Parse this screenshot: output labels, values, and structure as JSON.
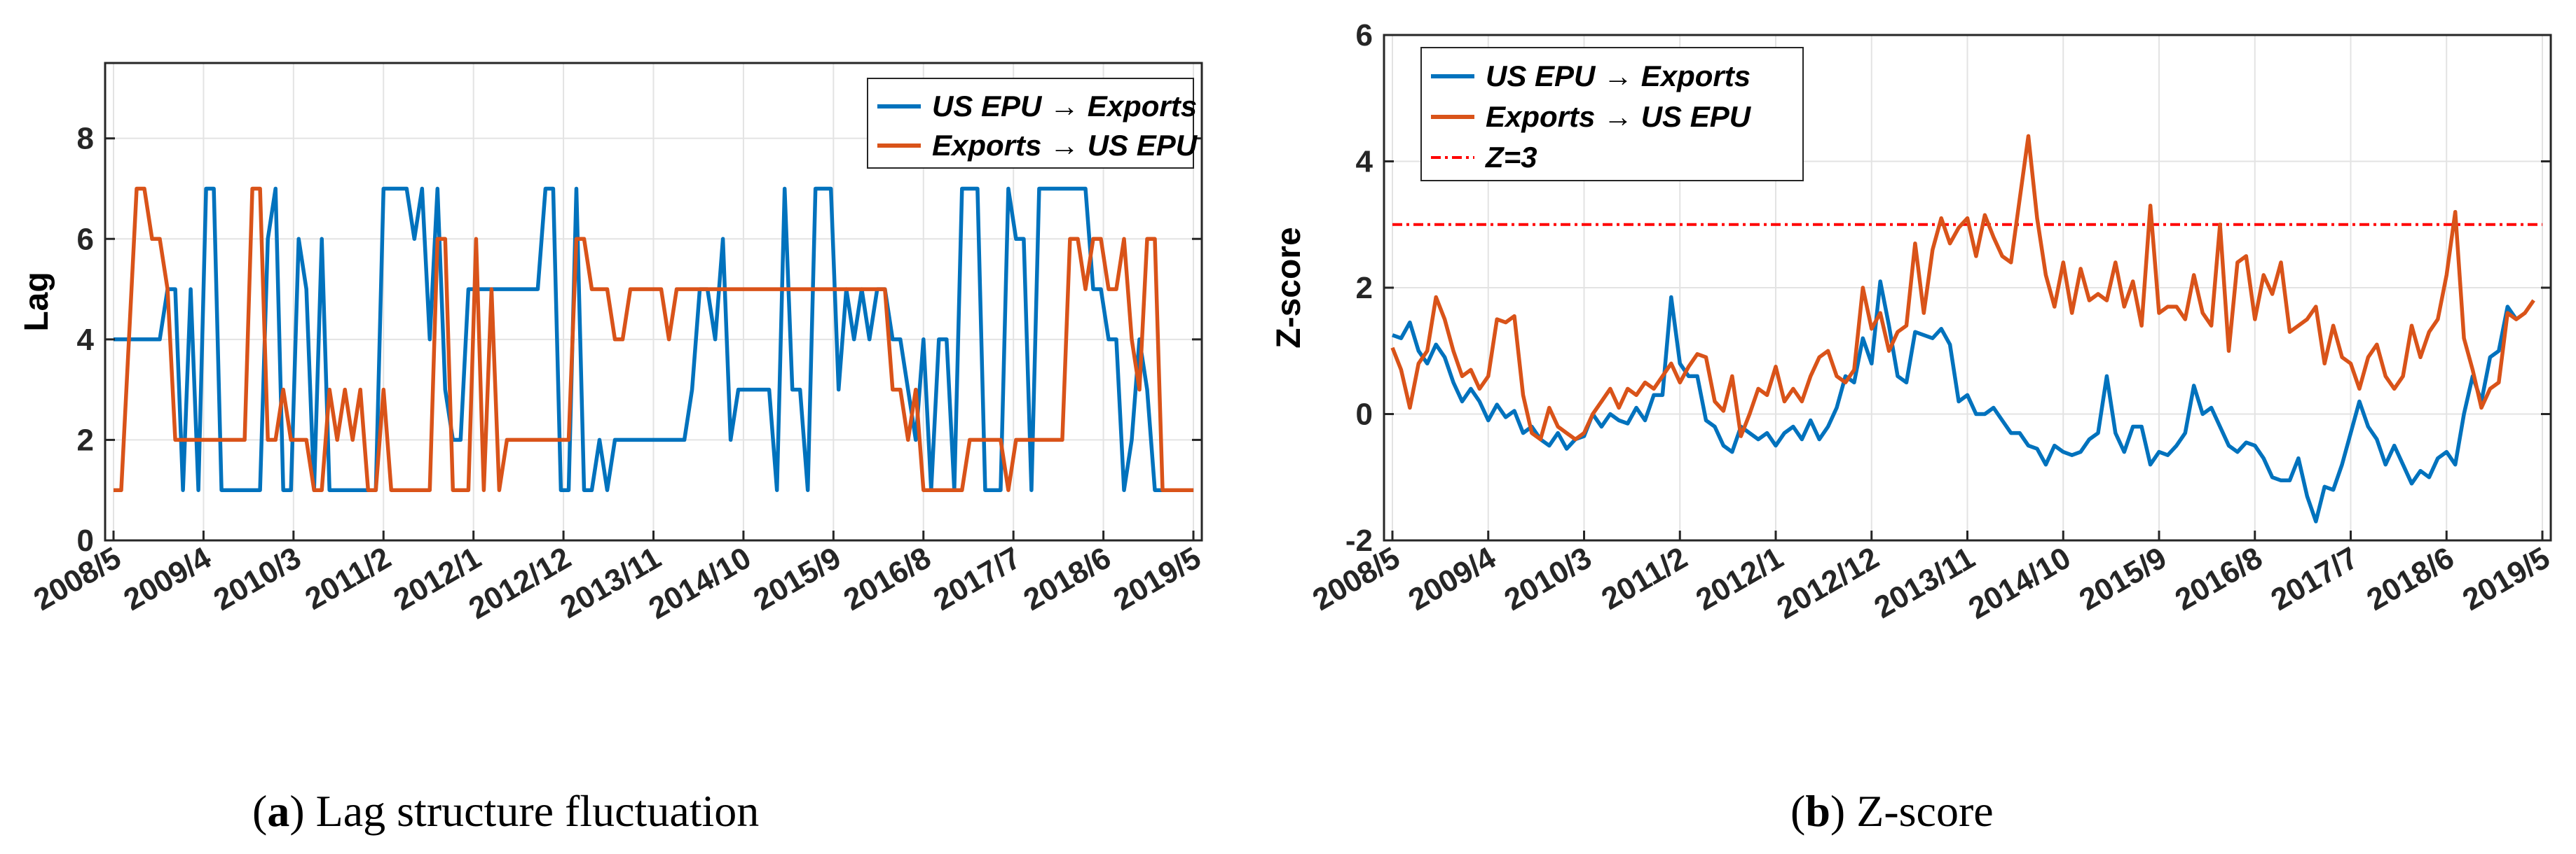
{
  "chart_data": [
    {
      "id": "a",
      "type": "line",
      "ylabel": "Lag",
      "ylim": [
        0,
        9.5
      ],
      "yticks": [
        0,
        2,
        4,
        6,
        8
      ],
      "grid": true,
      "legend_position": "top-right",
      "xlim": [
        0,
        132
      ],
      "x_ticks": [
        {
          "label": "2008/5",
          "x": 0
        },
        {
          "label": "2009/4",
          "x": 11
        },
        {
          "label": "2010/3",
          "x": 22
        },
        {
          "label": "2011/2",
          "x": 33
        },
        {
          "label": "2012/1",
          "x": 44
        },
        {
          "label": "2012/12",
          "x": 55
        },
        {
          "label": "2013/11",
          "x": 66
        },
        {
          "label": "2014/10",
          "x": 77
        },
        {
          "label": "2015/9",
          "x": 88
        },
        {
          "label": "2016/8",
          "x": 99
        },
        {
          "label": "2017/7",
          "x": 110
        },
        {
          "label": "2018/6",
          "x": 121
        },
        {
          "label": "2019/5",
          "x": 132
        }
      ],
      "series": [
        {
          "name": "US EPU",
          "name_suffix": "Exports",
          "color": "#0072BD",
          "values": [
            4,
            4,
            4,
            4,
            4,
            4,
            4,
            5,
            5,
            1,
            5,
            1,
            7,
            7,
            1,
            1,
            1,
            1,
            1,
            1,
            6,
            7,
            1,
            1,
            6,
            5,
            1,
            6,
            1,
            1,
            1,
            1,
            1,
            1,
            1,
            7,
            7,
            7,
            7,
            6,
            7,
            4,
            7,
            3,
            2,
            2,
            5,
            5,
            5,
            5,
            5,
            5,
            5,
            5,
            5,
            5,
            7,
            7,
            1,
            1,
            7,
            1,
            1,
            2,
            1,
            2,
            2,
            2,
            2,
            2,
            2,
            2,
            2,
            2,
            2,
            3,
            5,
            5,
            4,
            6,
            2,
            3,
            3,
            3,
            3,
            3,
            1,
            7,
            3,
            3,
            1,
            7,
            7,
            7,
            3,
            5,
            4,
            5,
            4,
            5,
            5,
            4,
            4,
            3,
            2,
            4,
            1,
            4,
            4,
            1,
            7,
            7,
            7,
            1,
            1,
            1,
            7,
            6,
            6,
            1,
            7,
            7,
            7,
            7,
            7,
            7,
            7,
            5,
            5,
            4,
            4,
            1,
            2,
            4,
            3,
            1,
            1,
            1,
            1,
            1,
            1
          ],
          "x_scale": 0.9429
        },
        {
          "name": "Exports",
          "name_suffix": "US EPU",
          "color": "#D95319",
          "values": [
            1,
            1,
            4,
            7,
            7,
            6,
            6,
            5,
            2,
            2,
            2,
            2,
            2,
            2,
            2,
            2,
            2,
            2,
            7,
            7,
            2,
            2,
            3,
            2,
            2,
            2,
            1,
            1,
            3,
            2,
            3,
            2,
            3,
            1,
            1,
            3,
            1,
            1,
            1,
            1,
            1,
            1,
            6,
            6,
            1,
            1,
            1,
            6,
            1,
            5,
            1,
            2,
            2,
            2,
            2,
            2,
            2,
            2,
            2,
            2,
            6,
            6,
            5,
            5,
            5,
            4,
            4,
            5,
            5,
            5,
            5,
            5,
            4,
            5,
            5,
            5,
            5,
            5,
            5,
            5,
            5,
            5,
            5,
            5,
            5,
            5,
            5,
            5,
            5,
            5,
            5,
            5,
            5,
            5,
            5,
            5,
            5,
            5,
            5,
            5,
            5,
            3,
            3,
            2,
            3,
            1,
            1,
            1,
            1,
            1,
            1,
            2,
            2,
            2,
            2,
            2,
            1,
            2,
            2,
            2,
            2,
            2,
            2,
            2,
            6,
            6,
            5,
            6,
            6,
            5,
            5,
            6,
            4,
            3,
            6,
            6,
            1,
            1,
            1,
            1,
            1
          ],
          "x_scale": 0.9429
        }
      ],
      "legend": [
        {
          "pre": "US EPU",
          "post": "Exports",
          "color": "#0072BD"
        },
        {
          "pre": "Exports",
          "post": "US EPU",
          "color": "#D95319"
        }
      ],
      "caption_label": "(a)",
      "caption_text": "Lag structure fluctuation"
    },
    {
      "id": "b",
      "type": "line",
      "ylabel": "Z-score",
      "ylim": [
        -2,
        6
      ],
      "yticks": [
        -2,
        0,
        2,
        4,
        6
      ],
      "grid": true,
      "legend_position": "top-left",
      "xlim": [
        0,
        132
      ],
      "x_ticks": [
        {
          "label": "2008/5",
          "x": 0
        },
        {
          "label": "2009/4",
          "x": 11
        },
        {
          "label": "2010/3",
          "x": 22
        },
        {
          "label": "2011/2",
          "x": 33
        },
        {
          "label": "2012/1",
          "x": 44
        },
        {
          "label": "2012/12",
          "x": 55
        },
        {
          "label": "2013/11",
          "x": 66
        },
        {
          "label": "2014/10",
          "x": 77
        },
        {
          "label": "2015/9",
          "x": 88
        },
        {
          "label": "2016/8",
          "x": 99
        },
        {
          "label": "2017/7",
          "x": 110
        },
        {
          "label": "2018/6",
          "x": 121
        },
        {
          "label": "2019/5",
          "x": 132
        }
      ],
      "series": [
        {
          "name": "US EPU",
          "name_suffix": "Exports",
          "color": "#0072BD",
          "values": [
            1.25,
            1.2,
            1.45,
            1.0,
            0.8,
            1.1,
            0.9,
            0.5,
            0.2,
            0.4,
            0.2,
            -0.1,
            0.15,
            -0.05,
            0.05,
            -0.3,
            -0.2,
            -0.4,
            -0.5,
            -0.3,
            -0.55,
            -0.4,
            -0.35,
            0.0,
            -0.2,
            0.0,
            -0.1,
            -0.15,
            0.1,
            -0.1,
            0.3,
            0.3,
            1.85,
            0.8,
            0.6,
            0.6,
            -0.1,
            -0.2,
            -0.5,
            -0.6,
            -0.2,
            -0.3,
            -0.4,
            -0.3,
            -0.5,
            -0.3,
            -0.2,
            -0.4,
            -0.1,
            -0.4,
            -0.2,
            0.1,
            0.6,
            0.5,
            1.2,
            0.8,
            2.1,
            1.4,
            0.6,
            0.5,
            1.3,
            1.25,
            1.2,
            1.35,
            1.1,
            0.2,
            0.3,
            0.0,
            0.0,
            0.1,
            -0.1,
            -0.3,
            -0.3,
            -0.5,
            -0.55,
            -0.8,
            -0.5,
            -0.6,
            -0.65,
            -0.6,
            -0.4,
            -0.3,
            0.6,
            -0.3,
            -0.6,
            -0.2,
            -0.2,
            -0.8,
            -0.6,
            -0.65,
            -0.5,
            -0.3,
            0.45,
            0.0,
            0.1,
            -0.2,
            -0.5,
            -0.6,
            -0.45,
            -0.5,
            -0.7,
            -1.0,
            -1.05,
            -1.05,
            -0.7,
            -1.3,
            -1.7,
            -1.15,
            -1.2,
            -0.8,
            -0.3,
            0.2,
            -0.2,
            -0.4,
            -0.8,
            -0.5,
            -0.8,
            -1.1,
            -0.9,
            -1.0,
            -0.7,
            -0.6,
            -0.8,
            0.0,
            0.6,
            0.2,
            0.9,
            1.0,
            1.7,
            1.5
          ],
          "x_scale": 1.0
        },
        {
          "name": "Exports",
          "name_suffix": "US EPU",
          "color": "#D95319",
          "values": [
            1.05,
            0.7,
            0.1,
            0.8,
            1.0,
            1.85,
            1.5,
            1.0,
            0.6,
            0.7,
            0.4,
            0.6,
            1.5,
            1.45,
            1.55,
            0.3,
            -0.3,
            -0.4,
            0.1,
            -0.2,
            -0.3,
            -0.4,
            -0.3,
            0.0,
            0.2,
            0.4,
            0.1,
            0.4,
            0.3,
            0.5,
            0.4,
            0.6,
            0.8,
            0.5,
            0.75,
            0.95,
            0.9,
            0.2,
            0.05,
            0.6,
            -0.35,
            0.0,
            0.4,
            0.3,
            0.75,
            0.2,
            0.4,
            0.2,
            0.6,
            0.9,
            1.0,
            0.6,
            0.5,
            0.7,
            2.0,
            1.35,
            1.6,
            1.0,
            1.3,
            1.4,
            2.7,
            1.6,
            2.6,
            3.1,
            2.7,
            2.95,
            3.1,
            2.5,
            3.15,
            2.8,
            2.5,
            2.4,
            3.4,
            4.4,
            3.1,
            2.2,
            1.7,
            2.4,
            1.6,
            2.3,
            1.8,
            1.9,
            1.8,
            2.4,
            1.7,
            2.1,
            1.4,
            3.3,
            1.6,
            1.7,
            1.7,
            1.5,
            2.2,
            1.6,
            1.4,
            3.0,
            1.0,
            2.4,
            2.5,
            1.5,
            2.2,
            1.9,
            2.4,
            1.3,
            1.4,
            1.5,
            1.7,
            0.8,
            1.4,
            0.9,
            0.8,
            0.4,
            0.9,
            1.1,
            0.6,
            0.4,
            0.6,
            1.4,
            0.9,
            1.3,
            1.5,
            2.2,
            3.2,
            1.2,
            0.7,
            0.1,
            0.4,
            0.5,
            1.6,
            1.5,
            1.6,
            1.8
          ],
          "x_scale": 1.0
        }
      ],
      "threshold": {
        "label": "Z=3",
        "value": 3,
        "color": "#FF0000"
      },
      "legend": [
        {
          "pre": "US EPU",
          "post": "Exports",
          "color": "#0072BD"
        },
        {
          "pre": "Exports",
          "post": "US EPU",
          "color": "#D95319"
        },
        {
          "pre": "Z=3",
          "post": "",
          "color": "#FF0000"
        }
      ],
      "caption_label": "(b)",
      "caption_text": "Z-score"
    }
  ]
}
